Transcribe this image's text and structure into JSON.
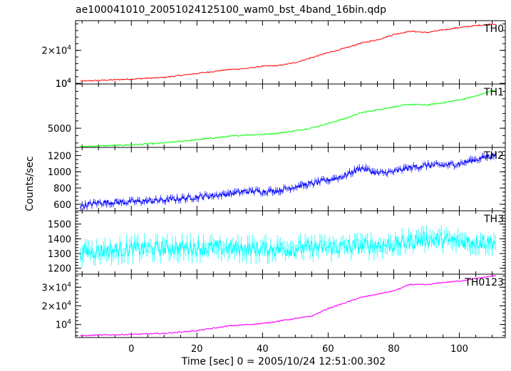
{
  "chart_data": {
    "type": "line",
    "title": "ae100041010_20051024125100_wam0_bst_4band_16bin.qdp",
    "xlabel": "Time [sec] 0 = 2005/10/24 12:51:00.302",
    "ylabel": "Counts/sec",
    "xlim": [
      -17,
      114
    ],
    "x_ticks": [
      0,
      20,
      40,
      60,
      80,
      100
    ],
    "x_tick_labels": [
      "0",
      "20",
      "40",
      "60",
      "80",
      "100"
    ],
    "grid": false,
    "panels": [
      {
        "name": "TH0",
        "color": "#ff0000",
        "ylim": [
          9800,
          29000
        ],
        "y_ticks": [
          10000,
          20000
        ],
        "y_tick_labels": [
          "10^4",
          "2×10^4"
        ],
        "y_label_mantissa": [
          "",
          "2×"
        ],
        "y_label_exponent": [
          "4",
          "4"
        ],
        "show_min_label": true,
        "min_label_text": "10",
        "min_label_exp": "4",
        "points": [
          [
            -15,
            10700
          ],
          [
            -10,
            10900
          ],
          [
            0,
            11300
          ],
          [
            10,
            11800
          ],
          [
            20,
            13000
          ],
          [
            30,
            14200
          ],
          [
            35,
            14500
          ],
          [
            40,
            15200
          ],
          [
            45,
            15400
          ],
          [
            50,
            16300
          ],
          [
            55,
            17800
          ],
          [
            60,
            19300
          ],
          [
            65,
            20600
          ],
          [
            70,
            22200
          ],
          [
            75,
            23200
          ],
          [
            80,
            24800
          ],
          [
            85,
            25800
          ],
          [
            90,
            25400
          ],
          [
            95,
            26200
          ],
          [
            100,
            26900
          ],
          [
            105,
            27500
          ],
          [
            110,
            28000
          ]
        ],
        "noise": 180
      },
      {
        "name": "TH1",
        "color": "#00ff00",
        "ylim": [
          2400,
          11000
        ],
        "y_ticks": [
          5000
        ],
        "y_tick_labels": [
          "5000"
        ],
        "points": [
          [
            -15,
            2500
          ],
          [
            -10,
            2600
          ],
          [
            0,
            2750
          ],
          [
            10,
            3000
          ],
          [
            20,
            3450
          ],
          [
            30,
            3900
          ],
          [
            35,
            4100
          ],
          [
            40,
            4150
          ],
          [
            45,
            4350
          ],
          [
            50,
            4650
          ],
          [
            55,
            5050
          ],
          [
            60,
            5650
          ],
          [
            65,
            6300
          ],
          [
            70,
            7100
          ],
          [
            75,
            7500
          ],
          [
            80,
            7900
          ],
          [
            85,
            8250
          ],
          [
            90,
            8150
          ],
          [
            95,
            8450
          ],
          [
            100,
            8850
          ],
          [
            105,
            9350
          ],
          [
            110,
            10100
          ]
        ],
        "noise": 90
      },
      {
        "name": "TH2",
        "color": "#0000ff",
        "ylim": [
          520,
          1300
        ],
        "y_ticks": [
          600,
          800,
          1000,
          1200
        ],
        "y_tick_labels": [
          "600",
          "800",
          "1000",
          "1200"
        ],
        "points": [
          [
            -15,
            580
          ],
          [
            -10,
            620
          ],
          [
            0,
            630
          ],
          [
            10,
            650
          ],
          [
            20,
            690
          ],
          [
            30,
            730
          ],
          [
            35,
            760
          ],
          [
            40,
            760
          ],
          [
            45,
            770
          ],
          [
            50,
            820
          ],
          [
            55,
            850
          ],
          [
            60,
            900
          ],
          [
            65,
            950
          ],
          [
            70,
            1050
          ],
          [
            75,
            980
          ],
          [
            80,
            1000
          ],
          [
            85,
            1050
          ],
          [
            90,
            1080
          ],
          [
            95,
            1080
          ],
          [
            100,
            1100
          ],
          [
            105,
            1150
          ],
          [
            110,
            1200
          ]
        ],
        "noise": 35
      },
      {
        "name": "TH3",
        "color": "#00ffff",
        "ylim": [
          1160,
          1590
        ],
        "y_ticks": [
          1200,
          1300,
          1400,
          1500
        ],
        "y_tick_labels": [
          "1200",
          "1300",
          "1400",
          "1500"
        ],
        "points": [
          [
            -15,
            1310
          ],
          [
            0,
            1330
          ],
          [
            20,
            1340
          ],
          [
            40,
            1330
          ],
          [
            60,
            1340
          ],
          [
            80,
            1360
          ],
          [
            90,
            1400
          ],
          [
            100,
            1380
          ],
          [
            110,
            1380
          ]
        ],
        "noise": 55
      },
      {
        "name": "TH0123",
        "color": "#ff00ff",
        "ylim": [
          3000,
          37000
        ],
        "y_ticks": [
          10000,
          20000,
          30000
        ],
        "y_tick_labels": [
          "10^4",
          "2×10^4",
          "3×10^4"
        ],
        "y_label_mantissa": [
          "",
          "2×",
          "3×"
        ],
        "y_label_exponent": [
          "4",
          "4",
          "4"
        ],
        "points": [
          [
            -15,
            4000
          ],
          [
            -10,
            4300
          ],
          [
            0,
            4700
          ],
          [
            10,
            5200
          ],
          [
            20,
            6700
          ],
          [
            30,
            9300
          ],
          [
            40,
            10500
          ],
          [
            50,
            13200
          ],
          [
            55,
            14500
          ],
          [
            60,
            18600
          ],
          [
            65,
            21500
          ],
          [
            70,
            24500
          ],
          [
            75,
            26300
          ],
          [
            80,
            28000
          ],
          [
            85,
            31500
          ],
          [
            90,
            31300
          ],
          [
            95,
            32500
          ],
          [
            100,
            33300
          ],
          [
            105,
            34600
          ],
          [
            110,
            36000
          ]
        ],
        "noise": 300
      }
    ]
  }
}
